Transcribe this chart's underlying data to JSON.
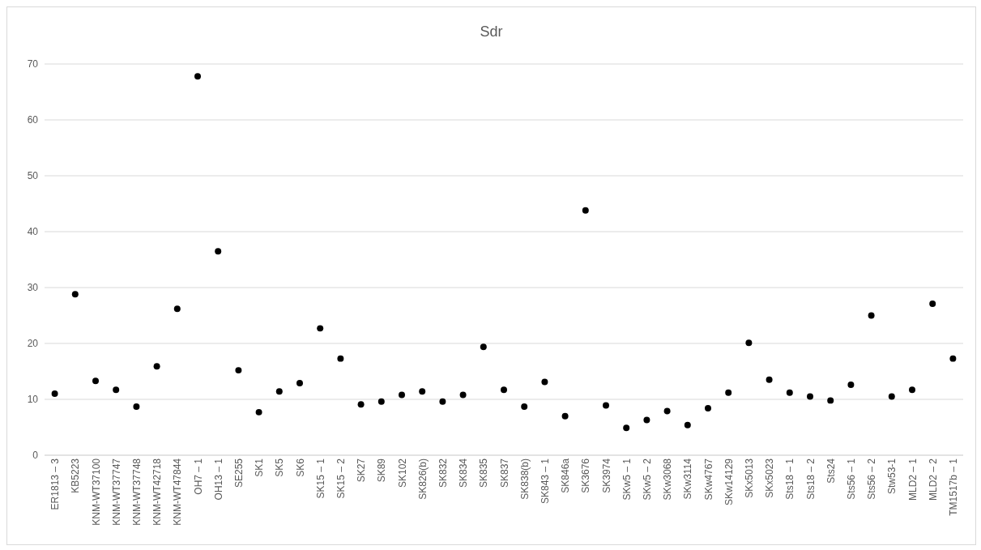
{
  "chart_data": {
    "type": "scatter",
    "title": "Sdr",
    "categories": [
      "ER1813 – 3",
      "KB5223",
      "KNM-WT37100",
      "KNM-WT37747",
      "KNM-WT37748",
      "KNM-WT42718",
      "KNM-WT47844",
      "OH7 – 1",
      "OH13 – 1",
      "SE255",
      "SK1",
      "SK5",
      "SK6",
      "SK15 – 1",
      "SK15 – 2",
      "SK27",
      "SK89",
      "SK102",
      "SK826(b)",
      "SK832",
      "SK834",
      "SK835",
      "SK837",
      "SK838(b)",
      "SK843 – 1",
      "SK846a",
      "SK3676",
      "SK3974",
      "SKw5 – 1",
      "SKw5 – 2",
      "SKw3068",
      "SKw3114",
      "SKw4767",
      "SKw14129",
      "SKx5013",
      "SKx5023",
      "Sts18 – 1",
      "Sts18 – 2",
      "Sts24",
      "Sts56 – 1",
      "Sts56 – 2",
      "Stw53-1",
      "MLD2 – 1",
      "MLD2 – 2",
      "TM1517b – 1"
    ],
    "values": [
      11.0,
      28.8,
      13.3,
      11.7,
      8.7,
      15.9,
      26.2,
      67.8,
      36.5,
      15.2,
      7.7,
      11.4,
      12.9,
      22.7,
      17.3,
      9.1,
      9.6,
      10.8,
      11.4,
      9.6,
      10.8,
      19.4,
      11.7,
      8.7,
      13.1,
      7.0,
      43.8,
      8.9,
      4.9,
      6.3,
      7.9,
      5.4,
      8.4,
      11.2,
      20.1,
      13.5,
      11.2,
      10.5,
      9.8,
      12.6,
      25.0,
      10.5,
      11.7,
      27.1,
      17.3
    ],
    "color": "#000000",
    "marker": "circle",
    "ylim": [
      0,
      70
    ],
    "yticks": [
      0,
      10,
      20,
      30,
      40,
      50,
      60,
      70
    ],
    "grid": "y"
  }
}
